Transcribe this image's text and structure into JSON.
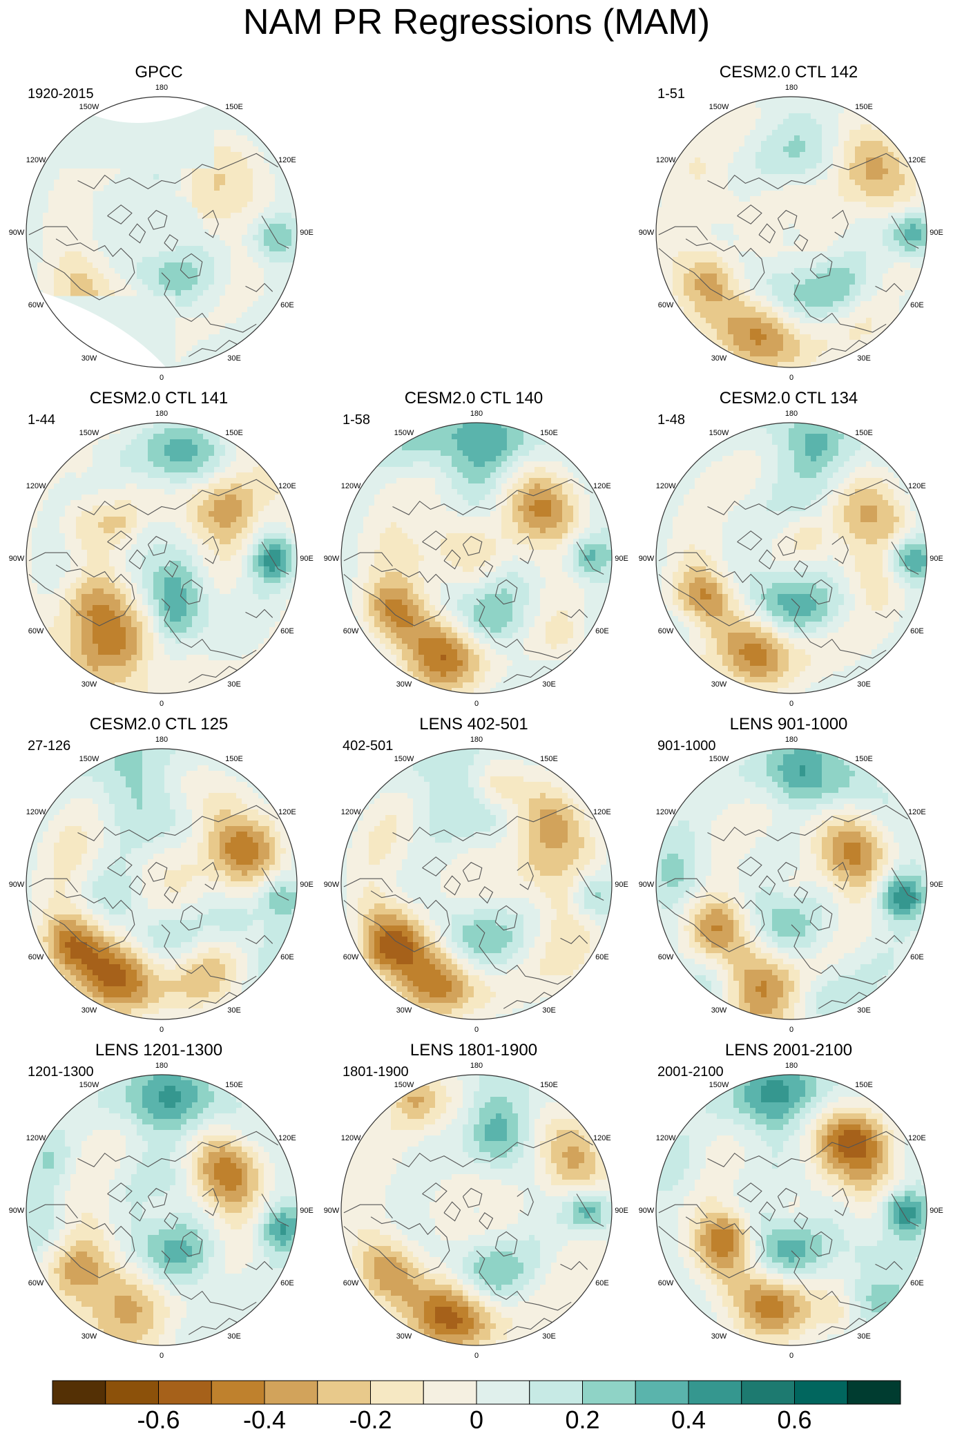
{
  "title": "NAM PR Regressions (MAM)",
  "lon_labels": [
    "180",
    "150E",
    "120E",
    "90E",
    "60E",
    "30E",
    "0",
    "30W",
    "60W",
    "90W",
    "120W",
    "150W"
  ],
  "panels": [
    {
      "title": "GPCC",
      "period": "1920-2015",
      "type": "obs"
    },
    {
      "title": "CESM2.0 CTL 142",
      "period": "1-51",
      "type": "model",
      "seed": 3
    },
    {
      "title": "CESM2.0 CTL 141",
      "period": "1-44",
      "type": "model",
      "seed": 7
    },
    {
      "title": "CESM2.0 CTL 140",
      "period": "1-58",
      "type": "model",
      "seed": 11
    },
    {
      "title": "CESM2.0 CTL 134",
      "period": "1-48",
      "type": "model",
      "seed": 17
    },
    {
      "title": "CESM2.0 CTL 125",
      "period": "27-126",
      "type": "model",
      "seed": 23
    },
    {
      "title": "LENS 402-501",
      "period": "402-501",
      "type": "model",
      "seed": 29
    },
    {
      "title": "LENS 901-1000",
      "period": "901-1000",
      "type": "model",
      "seed": 31
    },
    {
      "title": "LENS 1201-1300",
      "period": "1201-1300",
      "type": "model",
      "seed": 37
    },
    {
      "title": "LENS 1801-1900",
      "period": "1801-1900",
      "type": "model",
      "seed": 41
    },
    {
      "title": "LENS 2001-2100",
      "period": "2001-2100",
      "type": "model",
      "seed": 43
    }
  ],
  "colorbar": {
    "colors": [
      "#543005",
      "#8c510a",
      "#a6611a",
      "#bf812d",
      "#d2a35b",
      "#e8c98b",
      "#f6e8c3",
      "#f5f0e1",
      "#e0f0ec",
      "#c7eae5",
      "#8fd3c6",
      "#5ab4ac",
      "#35978f",
      "#1d7a70",
      "#01665e",
      "#003c30"
    ],
    "labels": [
      "-0.6",
      "-0.4",
      "-0.2",
      "0",
      "0.2",
      "0.4",
      "0.6"
    ]
  }
}
